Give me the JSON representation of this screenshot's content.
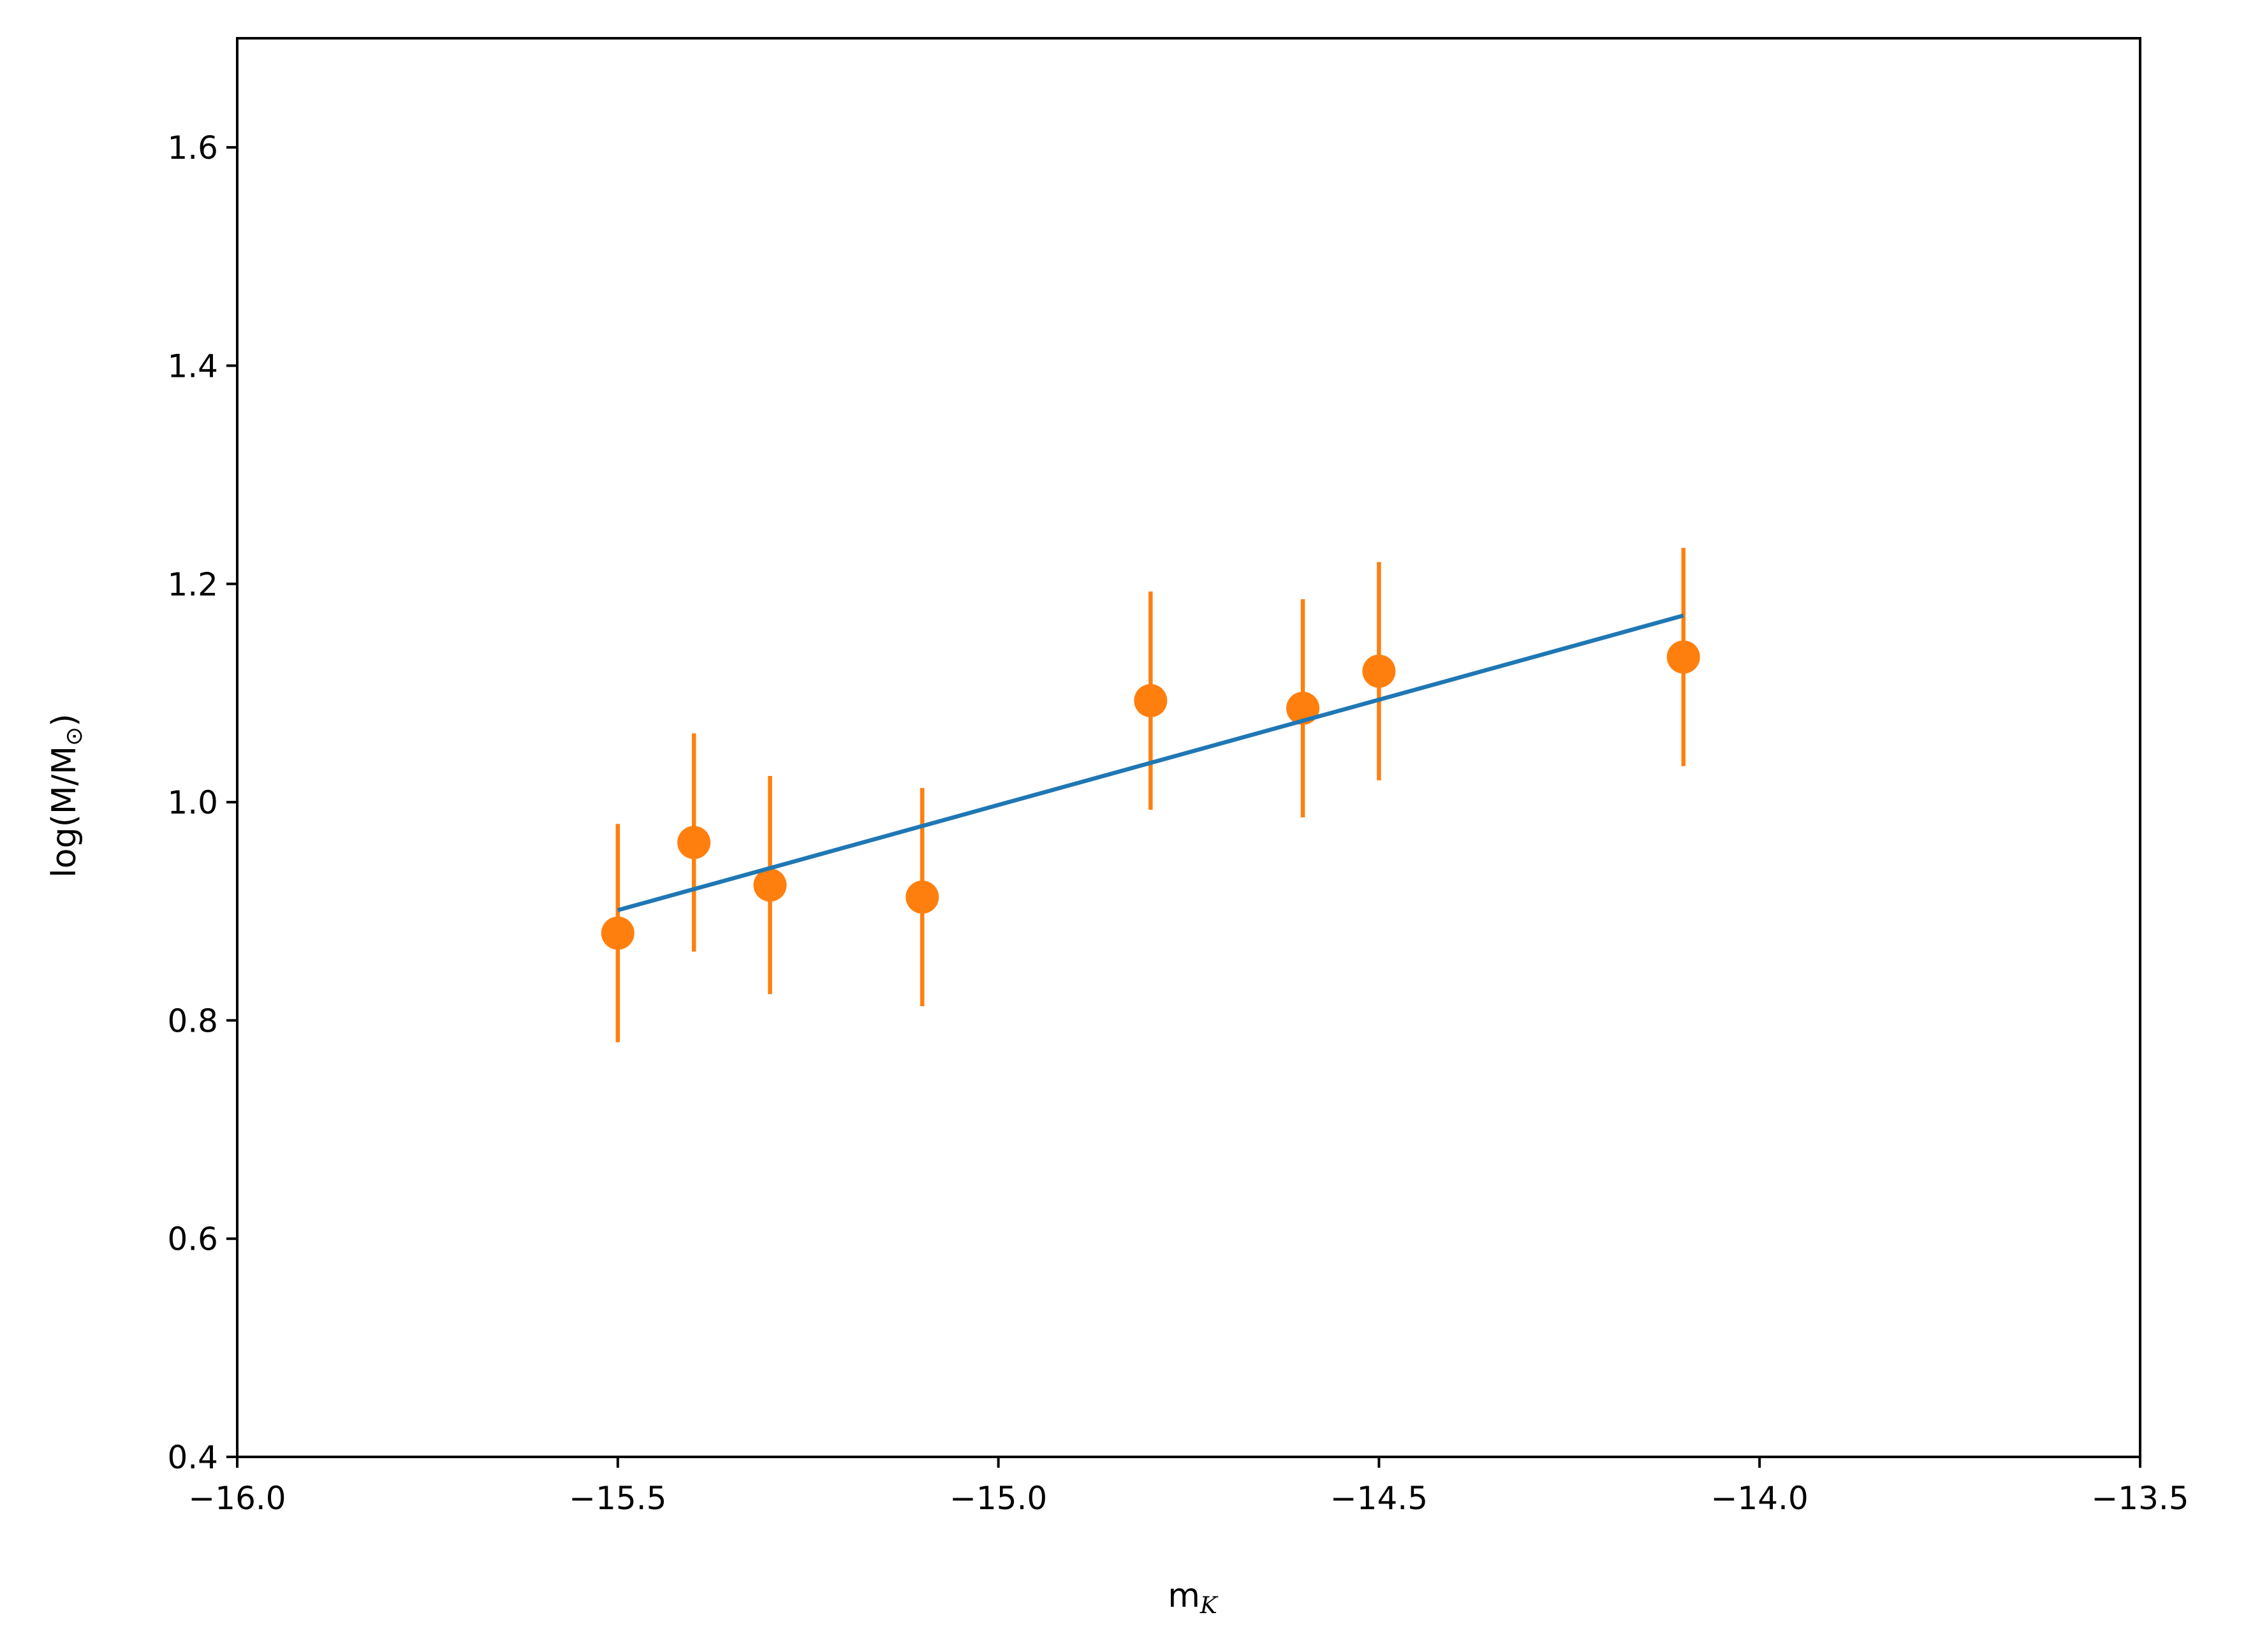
{
  "chart_data": {
    "type": "scatter",
    "title": "",
    "xlabel": {
      "base": "m",
      "sub": "K"
    },
    "ylabel": {
      "prefix": "log(M/M",
      "sub": "⊙",
      "suffix": ")"
    },
    "xlim": [
      -16.0,
      -13.5
    ],
    "ylim": [
      0.4,
      1.7
    ],
    "xticks": [
      -16.0,
      -15.5,
      -15.0,
      -14.5,
      -14.0,
      -13.5
    ],
    "xtick_labels": [
      "−16.0",
      "−15.5",
      "−15.0",
      "−14.5",
      "−14.0",
      "−13.5"
    ],
    "yticks": [
      0.4,
      0.6,
      0.8,
      1.0,
      1.2,
      1.4,
      1.6
    ],
    "ytick_labels": [
      "0.4",
      "0.6",
      "0.8",
      "1.0",
      "1.2",
      "1.4",
      "1.6"
    ],
    "grid": false,
    "legend": "none",
    "series": [
      {
        "kind": "errorbar",
        "color": "#ff7f0e",
        "points": [
          {
            "x": -15.5,
            "y": 0.88,
            "err": 0.1
          },
          {
            "x": -15.4,
            "y": 0.963,
            "err": 0.1
          },
          {
            "x": -15.3,
            "y": 0.924,
            "err": 0.1
          },
          {
            "x": -15.1,
            "y": 0.913,
            "err": 0.1
          },
          {
            "x": -14.8,
            "y": 1.093,
            "err": 0.1
          },
          {
            "x": -14.6,
            "y": 1.086,
            "err": 0.1
          },
          {
            "x": -14.5,
            "y": 1.12,
            "err": 0.1
          },
          {
            "x": -14.1,
            "y": 1.133,
            "err": 0.1
          }
        ]
      },
      {
        "kind": "line",
        "color": "#1f77b4",
        "points": [
          {
            "x": -15.5,
            "y": 0.901
          },
          {
            "x": -14.1,
            "y": 1.171
          }
        ]
      }
    ]
  }
}
